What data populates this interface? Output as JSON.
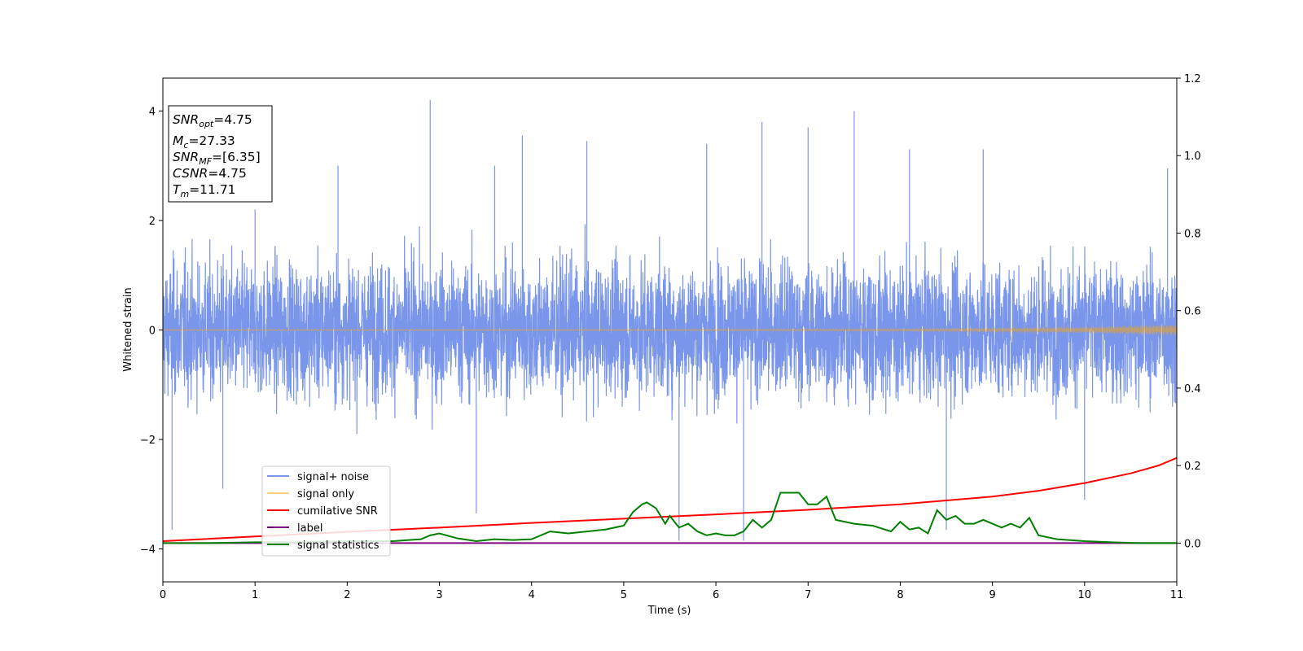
{
  "chart_data": {
    "type": "line",
    "xlabel": "Time (s)",
    "ylabel": "Whitened strain",
    "xlim": [
      0,
      11
    ],
    "ylim": [
      -4.6,
      4.6
    ],
    "y2lim": [
      -0.1,
      1.2
    ],
    "x_ticks": [
      "0",
      "1",
      "2",
      "3",
      "4",
      "5",
      "6",
      "7",
      "8",
      "9",
      "10",
      "11"
    ],
    "y_ticks": [
      "−4",
      "−2",
      "0",
      "2",
      "4"
    ],
    "y2_ticks": [
      "0.0",
      "0.2",
      "0.4",
      "0.6",
      "0.8",
      "1.0",
      "1.2"
    ],
    "grid": false,
    "legend_location": "lower-left",
    "annotation": {
      "snr_opt": {
        "base": "SNR",
        "sub": "opt",
        "value": "=4.75"
      },
      "mc": {
        "base": "M",
        "sub": "c",
        "value": "=27.33"
      },
      "snr_mf": {
        "base": "SNR",
        "sub": "MF",
        "value": "=[6.35]"
      },
      "csnr": {
        "base": "CSNR",
        "value": "=4.75"
      },
      "tm": {
        "base": "T",
        "sub": "m",
        "value": "=11.71"
      }
    },
    "series": [
      {
        "name": "signal+ noise",
        "axis": "left",
        "color": "#4169e1",
        "description_type": "noise",
        "peaks": [
          {
            "x": 0.1,
            "y": -3.65
          },
          {
            "x": 0.65,
            "y": -2.9
          },
          {
            "x": 1.0,
            "y": 2.2
          },
          {
            "x": 1.9,
            "y": 3.0
          },
          {
            "x": 2.9,
            "y": 4.2
          },
          {
            "x": 3.4,
            "y": -3.35
          },
          {
            "x": 3.6,
            "y": 3.0
          },
          {
            "x": 3.9,
            "y": 3.55
          },
          {
            "x": 4.6,
            "y": 3.45
          },
          {
            "x": 5.6,
            "y": -3.85
          },
          {
            "x": 5.9,
            "y": 3.4
          },
          {
            "x": 6.3,
            "y": -3.85
          },
          {
            "x": 6.5,
            "y": 3.8
          },
          {
            "x": 7.0,
            "y": 3.7
          },
          {
            "x": 7.5,
            "y": 4.0
          },
          {
            "x": 8.1,
            "y": 3.3
          },
          {
            "x": 8.5,
            "y": -3.65
          },
          {
            "x": 8.9,
            "y": 3.3
          },
          {
            "x": 10.0,
            "y": -3.1
          },
          {
            "x": 10.9,
            "y": 2.95
          }
        ]
      },
      {
        "name": "signal only",
        "axis": "left",
        "color": "#ffa500",
        "x": [
          0,
          2,
          4,
          6,
          8,
          9,
          10,
          10.5,
          11
        ],
        "y": [
          0.01,
          0.01,
          0.01,
          0.015,
          0.02,
          0.03,
          0.05,
          0.08,
          0.1
        ]
      },
      {
        "name": "cumilative SNR",
        "axis": "right",
        "color": "#ff0000",
        "x": [
          0,
          1,
          2,
          3,
          4,
          5,
          6,
          7,
          8,
          8.5,
          9,
          9.5,
          10,
          10.5,
          10.8,
          11
        ],
        "y": [
          0.005,
          0.017,
          0.029,
          0.04,
          0.052,
          0.063,
          0.074,
          0.086,
          0.1,
          0.11,
          0.12,
          0.135,
          0.155,
          0.18,
          0.2,
          0.22
        ]
      },
      {
        "name": "label",
        "axis": "right",
        "color": "#800080",
        "x": [
          0,
          11
        ],
        "y": [
          0.0,
          0.0
        ]
      },
      {
        "name": "signal statistics",
        "axis": "right",
        "color": "#008000",
        "x": [
          0,
          0.5,
          1,
          1.5,
          2,
          2.5,
          2.8,
          2.9,
          3.0,
          3.2,
          3.4,
          3.6,
          3.8,
          4.0,
          4.2,
          4.4,
          4.6,
          4.8,
          5.0,
          5.1,
          5.2,
          5.25,
          5.35,
          5.45,
          5.5,
          5.6,
          5.7,
          5.8,
          5.9,
          6.0,
          6.1,
          6.2,
          6.3,
          6.4,
          6.5,
          6.6,
          6.7,
          6.8,
          6.9,
          7.0,
          7.1,
          7.2,
          7.3,
          7.5,
          7.7,
          7.9,
          8.0,
          8.1,
          8.2,
          8.3,
          8.4,
          8.5,
          8.6,
          8.7,
          8.8,
          8.9,
          9.0,
          9.1,
          9.2,
          9.3,
          9.4,
          9.5,
          9.7,
          10.0,
          10.3,
          10.6,
          11.0
        ],
        "y": [
          0.0,
          0.0,
          0.002,
          0.002,
          0.005,
          0.005,
          0.01,
          0.02,
          0.025,
          0.012,
          0.005,
          0.01,
          0.008,
          0.01,
          0.03,
          0.025,
          0.03,
          0.035,
          0.045,
          0.08,
          0.1,
          0.105,
          0.09,
          0.05,
          0.07,
          0.04,
          0.05,
          0.03,
          0.02,
          0.025,
          0.02,
          0.02,
          0.03,
          0.06,
          0.04,
          0.06,
          0.13,
          0.13,
          0.13,
          0.1,
          0.1,
          0.12,
          0.06,
          0.05,
          0.045,
          0.03,
          0.055,
          0.035,
          0.04,
          0.025,
          0.085,
          0.06,
          0.07,
          0.05,
          0.05,
          0.06,
          0.05,
          0.04,
          0.05,
          0.04,
          0.065,
          0.02,
          0.01,
          0.005,
          0.002,
          0.0,
          0.0
        ]
      }
    ]
  }
}
